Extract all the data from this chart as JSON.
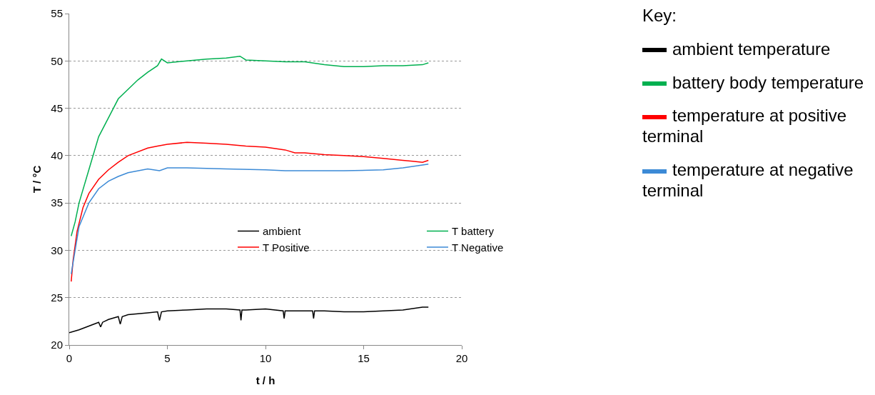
{
  "chart_data": {
    "type": "line",
    "xlabel": "t / h",
    "ylabel": "T / °C",
    "xlim": [
      0,
      20
    ],
    "xticks": [
      0,
      5,
      10,
      15,
      20
    ],
    "ylim": [
      20,
      55
    ],
    "yticks": [
      20,
      25,
      30,
      35,
      40,
      45,
      50,
      55
    ],
    "grid": "y",
    "legend": "center",
    "line_style": "solid",
    "marker": "none",
    "annotations": [
      "Key:",
      "ambient temperature",
      "battery body temperature",
      "temperature at positive terminal",
      "temperature at negative terminal"
    ],
    "series": [
      {
        "name": "ambient",
        "color": "#000000",
        "x": [
          0,
          0.5,
          1,
          1.5,
          1.6,
          1.7,
          2,
          2.5,
          2.6,
          2.7,
          3,
          4,
          4.5,
          4.6,
          4.7,
          5,
          6,
          7,
          8,
          8.7,
          8.75,
          8.8,
          9,
          10,
          10.9,
          10.95,
          11,
          12,
          12.4,
          12.45,
          12.5,
          13,
          14,
          15,
          16,
          17,
          18,
          18.3
        ],
        "values": [
          21.3,
          21.6,
          22,
          22.4,
          21.9,
          22.4,
          22.7,
          23,
          22.2,
          23,
          23.2,
          23.4,
          23.5,
          22.6,
          23.5,
          23.6,
          23.7,
          23.8,
          23.8,
          23.7,
          22.6,
          23.7,
          23.7,
          23.8,
          23.6,
          22.8,
          23.6,
          23.6,
          23.6,
          22.8,
          23.6,
          23.6,
          23.5,
          23.5,
          23.6,
          23.7,
          24,
          24
        ]
      },
      {
        "name": "T battery",
        "color": "#00b050",
        "x": [
          0.1,
          0.3,
          0.5,
          1,
          1.5,
          2,
          2.5,
          3,
          3.5,
          4,
          4.5,
          4.7,
          5,
          6,
          7,
          8,
          8.7,
          9,
          10,
          11,
          12,
          13,
          14,
          15,
          16,
          17,
          18,
          18.3
        ],
        "values": [
          31.5,
          33,
          35,
          38.5,
          42,
          44,
          46,
          47,
          48,
          48.8,
          49.5,
          50.2,
          49.8,
          50,
          50.2,
          50.3,
          50.5,
          50.1,
          50,
          49.9,
          49.9,
          49.6,
          49.4,
          49.4,
          49.5,
          49.5,
          49.6,
          49.8
        ]
      },
      {
        "name": "T Positive",
        "color": "#ff0000",
        "x": [
          0.1,
          0.2,
          0.4,
          0.7,
          1,
          1.5,
          2,
          2.5,
          3,
          4,
          4.5,
          5,
          6,
          7,
          8,
          9,
          10,
          11,
          11.5,
          12,
          13,
          14,
          15,
          16,
          17,
          17.5,
          18,
          18.3
        ],
        "values": [
          26.7,
          29,
          32,
          34.5,
          36,
          37.5,
          38.5,
          39.3,
          40,
          40.8,
          41,
          41.2,
          41.4,
          41.3,
          41.2,
          41,
          40.9,
          40.6,
          40.3,
          40.3,
          40.1,
          40,
          39.9,
          39.7,
          39.5,
          39.4,
          39.3,
          39.5
        ]
      },
      {
        "name": "T Negative",
        "color": "#3c8ad6",
        "x": [
          0.1,
          0.3,
          0.5,
          1,
          1.5,
          2,
          2.5,
          3,
          4,
          4.6,
          5,
          6,
          8,
          10,
          11,
          12,
          14,
          16,
          17,
          18,
          18.3
        ],
        "values": [
          27.5,
          30,
          32.5,
          35,
          36.5,
          37.3,
          37.8,
          38.2,
          38.6,
          38.4,
          38.7,
          38.7,
          38.6,
          38.5,
          38.4,
          38.4,
          38.4,
          38.5,
          38.7,
          39,
          39.1
        ]
      }
    ]
  }
}
